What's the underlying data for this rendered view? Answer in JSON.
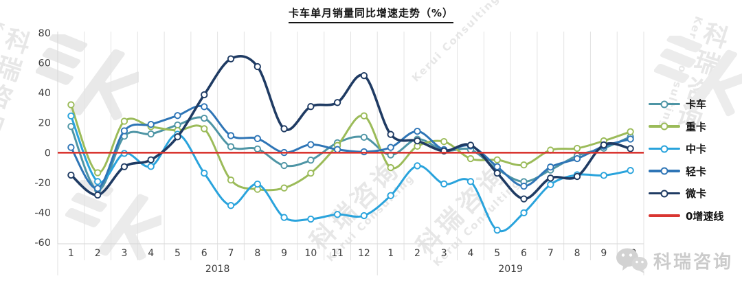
{
  "chart_data": {
    "type": "line",
    "title": "卡车单月销量同比增速走势（%）",
    "grid": "vertical-only",
    "legend_position": "right",
    "ylim": [
      -60,
      80
    ],
    "yticks": [
      80,
      60,
      40,
      20,
      0,
      -20,
      -40,
      -60
    ],
    "x_groups": [
      {
        "label": "2018",
        "count": 12
      },
      {
        "label": "2019",
        "count": 10
      }
    ],
    "categories": [
      "1",
      "2",
      "3",
      "4",
      "5",
      "6",
      "7",
      "8",
      "9",
      "10",
      "11",
      "12",
      "1",
      "2",
      "3",
      "4",
      "5",
      "6",
      "7",
      "8",
      "9",
      "10"
    ],
    "series": [
      {
        "name": "卡车",
        "color": "#4E95A5",
        "marker": true,
        "width": 3,
        "values": [
          17.5,
          -25,
          11,
          12.5,
          18.5,
          23,
          4,
          2.5,
          -8.6,
          -5,
          6.6,
          10.3,
          -1.5,
          9,
          1.5,
          2,
          -11,
          -19.4,
          -11.6,
          -2,
          3,
          10.6
        ]
      },
      {
        "name": "重卡",
        "color": "#9BBB59",
        "marker": true,
        "width": 3,
        "values": [
          32,
          -13.4,
          21,
          17.4,
          14.8,
          16,
          -18.3,
          -24.5,
          -23.6,
          -13.7,
          4.8,
          24.6,
          -10,
          4.3,
          7.4,
          -4,
          -4.8,
          -8.2,
          1.7,
          2.9,
          7.9,
          14
        ]
      },
      {
        "name": "中卡",
        "color": "#29A3DC",
        "marker": true,
        "width": 3,
        "values": [
          24.5,
          -19.3,
          -0.5,
          -9.2,
          12.3,
          -13.7,
          -35.3,
          -21,
          -43.3,
          -44.4,
          -41.3,
          -42.1,
          -28.7,
          -8.8,
          -20.9,
          -19.3,
          -51.8,
          -40.2,
          -21.3,
          -14.8,
          -15.2,
          -11.9
        ]
      },
      {
        "name": "轻卡",
        "color": "#2E75B6",
        "marker": true,
        "width": 3,
        "values": [
          3.5,
          -23.9,
          14.6,
          18.9,
          24.8,
          30.7,
          11.4,
          9.4,
          0.1,
          5.4,
          2.1,
          0.6,
          3.5,
          14.3,
          2,
          4.5,
          -9.4,
          -22.4,
          -9.6,
          -4,
          4.3,
          9.1
        ]
      },
      {
        "name": "微卡",
        "color": "#1F3B63",
        "marker": true,
        "width": 3.6,
        "values": [
          -15,
          -28.3,
          -9.4,
          -4.8,
          10.6,
          38.7,
          62.7,
          57.5,
          16,
          30.8,
          33.5,
          51.5,
          12.2,
          7.9,
          1.1,
          5,
          -13.7,
          -30.9,
          -17,
          -15.9,
          5.2,
          2.7
        ]
      },
      {
        "name": "0增速线",
        "color": "#D93631",
        "marker": false,
        "width": 2.6,
        "values": [
          0,
          0,
          0,
          0,
          0,
          0,
          0,
          0,
          0,
          0,
          0,
          0,
          0,
          0,
          0,
          0,
          0,
          0,
          0,
          0,
          0,
          0
        ]
      }
    ]
  },
  "watermark": {
    "text": "科瑞咨询",
    "subtext": "Kerui Consulting"
  },
  "badge": {
    "icon": "wechat-icon",
    "text": "科瑞咨询"
  }
}
